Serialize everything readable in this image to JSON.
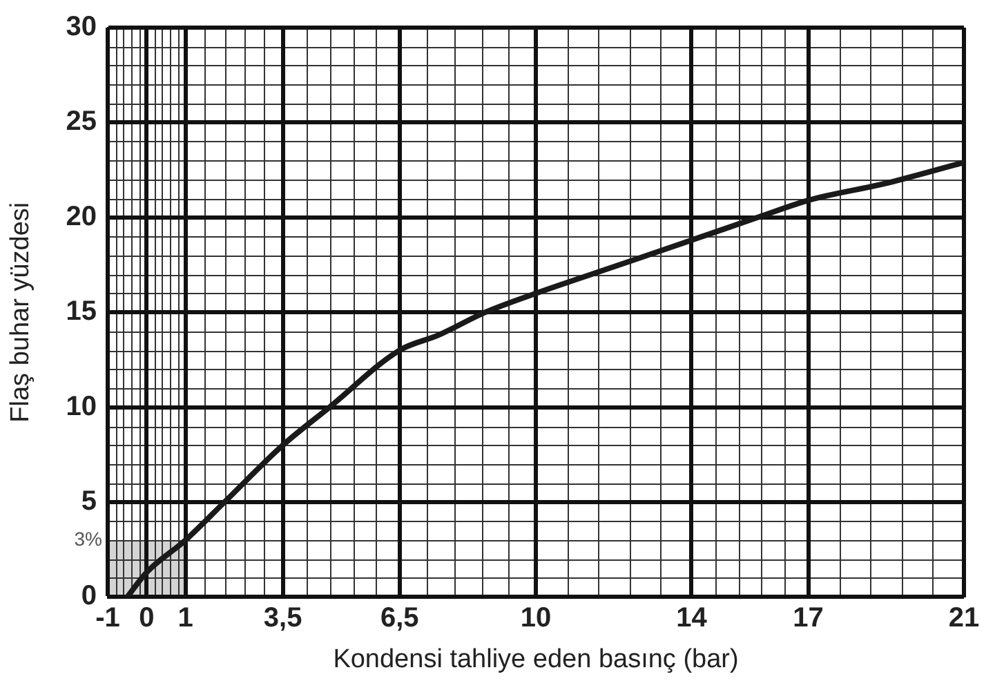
{
  "chart_data": {
    "type": "line",
    "xlabel": "Kondensi tahliye eden basınç (bar)",
    "ylabel": "Flaş buhar yüzdesi",
    "x": [
      -0.5,
      0,
      1,
      2,
      3.5,
      4.7,
      6.5,
      7.5,
      8.7,
      10,
      12,
      14,
      15.7,
      17,
      19,
      21
    ],
    "values": [
      0,
      1.3,
      3,
      5,
      8,
      10,
      13,
      13.8,
      15,
      16,
      17.4,
      18.8,
      20,
      20.9,
      21.8,
      22.9
    ],
    "color": "#1a1a1a",
    "marker": "none",
    "line_style": "solid",
    "xlim": [
      -1,
      21
    ],
    "xticks": [
      -1,
      0,
      1,
      {
        "value": 3.5,
        "label": "3,5"
      },
      {
        "value": 6.5,
        "label": "6,5"
      },
      10,
      14,
      17,
      21
    ],
    "ylim": [
      0,
      30
    ],
    "yticks": [
      0,
      5,
      10,
      15,
      20,
      25,
      30
    ],
    "grid": true,
    "legend": false,
    "bands": [
      {
        "axis": "y",
        "from": 0,
        "to": 3,
        "label": "3%",
        "color": "#d4d4d4"
      }
    ]
  }
}
